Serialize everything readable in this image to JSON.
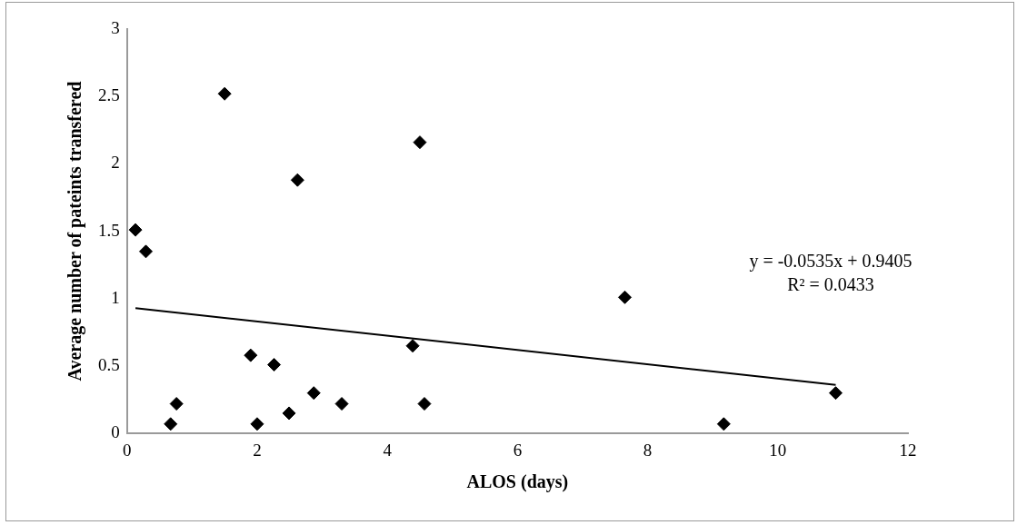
{
  "chart_data": {
    "type": "scatter",
    "xlabel": "ALOS (days)",
    "ylabel": "Average number of pateints transfered",
    "xlim": [
      0,
      12
    ],
    "xticks": [
      0,
      2,
      4,
      6,
      8,
      10,
      12
    ],
    "ylim": [
      0,
      3
    ],
    "yticks": [
      0,
      0.5,
      1,
      1.5,
      2,
      2.5,
      3
    ],
    "grid": false,
    "legend": false,
    "marker": "diamond",
    "annotations": [
      "y = -0.0535x + 0.9405",
      "R² = 0.0433"
    ],
    "series": [
      {
        "type": "scatter",
        "color": "#000000",
        "x": [
          1.5,
          4.5,
          2.62,
          0.13,
          0.29,
          1.9,
          2.26,
          4.39,
          2.87,
          0.76,
          3.3,
          4.57,
          2.49,
          0.67,
          2.0,
          7.65,
          9.17,
          10.89
        ],
        "values": [
          2.52,
          2.16,
          1.88,
          1.51,
          1.35,
          0.58,
          0.51,
          0.65,
          0.3,
          0.22,
          0.22,
          0.22,
          0.15,
          0.07,
          0.07,
          1.01,
          0.07,
          0.3
        ]
      },
      {
        "type": "line",
        "color": "#000000",
        "marker": "none",
        "x": [
          0.13,
          10.89
        ],
        "values": [
          0.93,
          0.36
        ]
      }
    ]
  }
}
